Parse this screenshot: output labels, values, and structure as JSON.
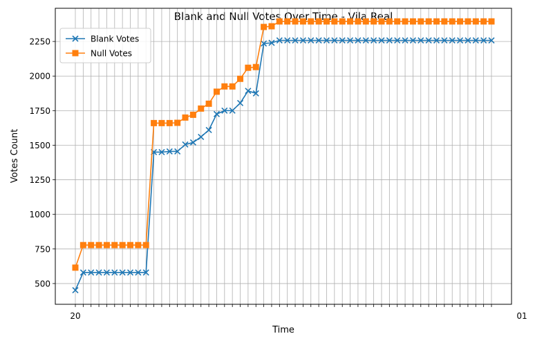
{
  "chart_data": {
    "type": "line",
    "title": "Blank and Null Votes Over Time - Vila Real",
    "xlabel": "Time",
    "ylabel": "Votes Count",
    "ylim": [
      350,
      2490
    ],
    "yticks": [
      500,
      750,
      1000,
      1250,
      1500,
      1750,
      2000,
      2250
    ],
    "grid": true,
    "legend_position": "top-left",
    "x_tick_labels_illegible": true,
    "x_tick_label_visible": "20",
    "x_tick_label_visible_end": "01",
    "series": [
      {
        "name": "Blank Votes",
        "color": "#1f77b4",
        "marker": "x",
        "values": [
          452,
          580,
          580,
          580,
          580,
          580,
          580,
          580,
          580,
          580,
          1450,
          1450,
          1455,
          1455,
          1505,
          1520,
          1560,
          1610,
          1725,
          1750,
          1750,
          1805,
          1893,
          1875,
          2235,
          2240,
          2258,
          2258,
          2258,
          2258,
          2258,
          2258,
          2258,
          2258,
          2258,
          2258,
          2258,
          2258,
          2258,
          2258,
          2258,
          2258,
          2258,
          2258,
          2258,
          2258,
          2258,
          2258,
          2258,
          2258,
          2258,
          2258,
          2258,
          2258
        ]
      },
      {
        "name": "Null Votes",
        "color": "#ff7f0e",
        "marker": "s",
        "values": [
          615,
          778,
          778,
          778,
          778,
          778,
          778,
          778,
          778,
          778,
          1660,
          1660,
          1660,
          1662,
          1700,
          1720,
          1765,
          1800,
          1887,
          1925,
          1925,
          1980,
          2060,
          2065,
          2355,
          2360,
          2395,
          2395,
          2395,
          2395,
          2395,
          2395,
          2395,
          2395,
          2395,
          2395,
          2395,
          2395,
          2395,
          2395,
          2395,
          2395,
          2395,
          2395,
          2395,
          2395,
          2395,
          2395,
          2395,
          2395,
          2395,
          2395,
          2395,
          2395
        ]
      }
    ]
  }
}
